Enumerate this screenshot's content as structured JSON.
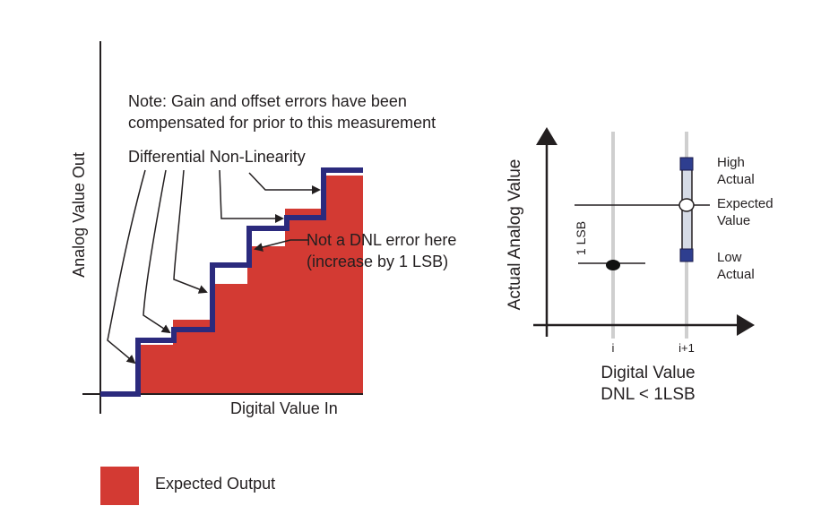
{
  "colors": {
    "expected_fill": "#d33a33",
    "staircase": "#2b2a7d",
    "ink": "#231f20",
    "grid_line": "#cfcfcf",
    "bar_fill": "#d6dbe6",
    "marker_blue": "#2e3e8f"
  },
  "left_diagram": {
    "note_line1": "Note: Gain and offset errors have been",
    "note_line2": "compensated for prior to this measurement",
    "dnl_label": "Differential Non-Linearity",
    "not_dnl_line1": "Not a DNL error here",
    "not_dnl_line2": "(increase by 1 LSB)",
    "y_axis_label": "Analog Value Out",
    "x_axis_label": "Digital Value In"
  },
  "right_diagram": {
    "y_axis_label": "Actual Analog Value",
    "x_axis_label": "Digital Value",
    "x_axis_sublabel": "DNL < 1LSB",
    "tick_i": "i",
    "tick_i1": "i+1",
    "lsb_label": "1 LSB",
    "high_line1": "High",
    "high_line2": "Actual",
    "expected_line1": "Expected",
    "expected_line2": "Value",
    "low_line1": "Low",
    "low_line2": "Actual"
  },
  "legend": {
    "label": "Expected Output"
  }
}
